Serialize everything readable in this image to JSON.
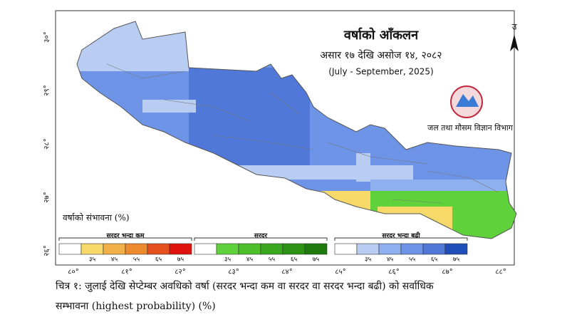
{
  "map": {
    "title": "वर्षाको आँकलन",
    "subtitle": "असार १७ देखि असोज १४, २०८२",
    "period": "(July - September, 2025)",
    "agency": "जल तथा मौसम विज्ञान विभाग",
    "north": "उ",
    "longitudes": [
      "८०°",
      "८१°",
      "८२°",
      "८३°",
      "८४°",
      "८५°",
      "८६°",
      "८७°",
      "८८°"
    ],
    "latitudes": [
      "३०°",
      "२९°",
      "२८°",
      "२७°",
      "२६°"
    ],
    "legend": {
      "title": "वर्षाको संभावना (%)",
      "groups": [
        {
          "title": "सरदर भन्दा कम",
          "colors": [
            "#ffffff",
            "#f7d96a",
            "#f4b048",
            "#ee8a2e",
            "#e5501f",
            "#e0120e"
          ],
          "labels": [
            "३५",
            "४५",
            "५५",
            "६५",
            "७५"
          ]
        },
        {
          "title": "सरदर",
          "colors": [
            "#ffffff",
            "#5fd13a",
            "#4cbf2a",
            "#3aa81f",
            "#2c9216",
            "#1f7a0e"
          ],
          "labels": [
            "३५",
            "४५",
            "५५",
            "६५",
            "७५"
          ]
        },
        {
          "title": "सरदर भन्दा बढी",
          "colors": [
            "#ffffff",
            "#b9cdf3",
            "#8fb0ee",
            "#6d94e6",
            "#4f78d8",
            "#1e4fb8"
          ],
          "labels": [
            "३५",
            "४५",
            "५५",
            "६५",
            "७५"
          ]
        }
      ]
    }
  },
  "caption": [
    "चित्र १: जुलाई देखि सेप्टेम्बर अवधिको वर्षा (सरदर भन्दा कम वा सरदर वा सरदर भन्दा बढी) को सर्वाधिक",
    "सम्भावना (highest probability) (%)"
  ]
}
